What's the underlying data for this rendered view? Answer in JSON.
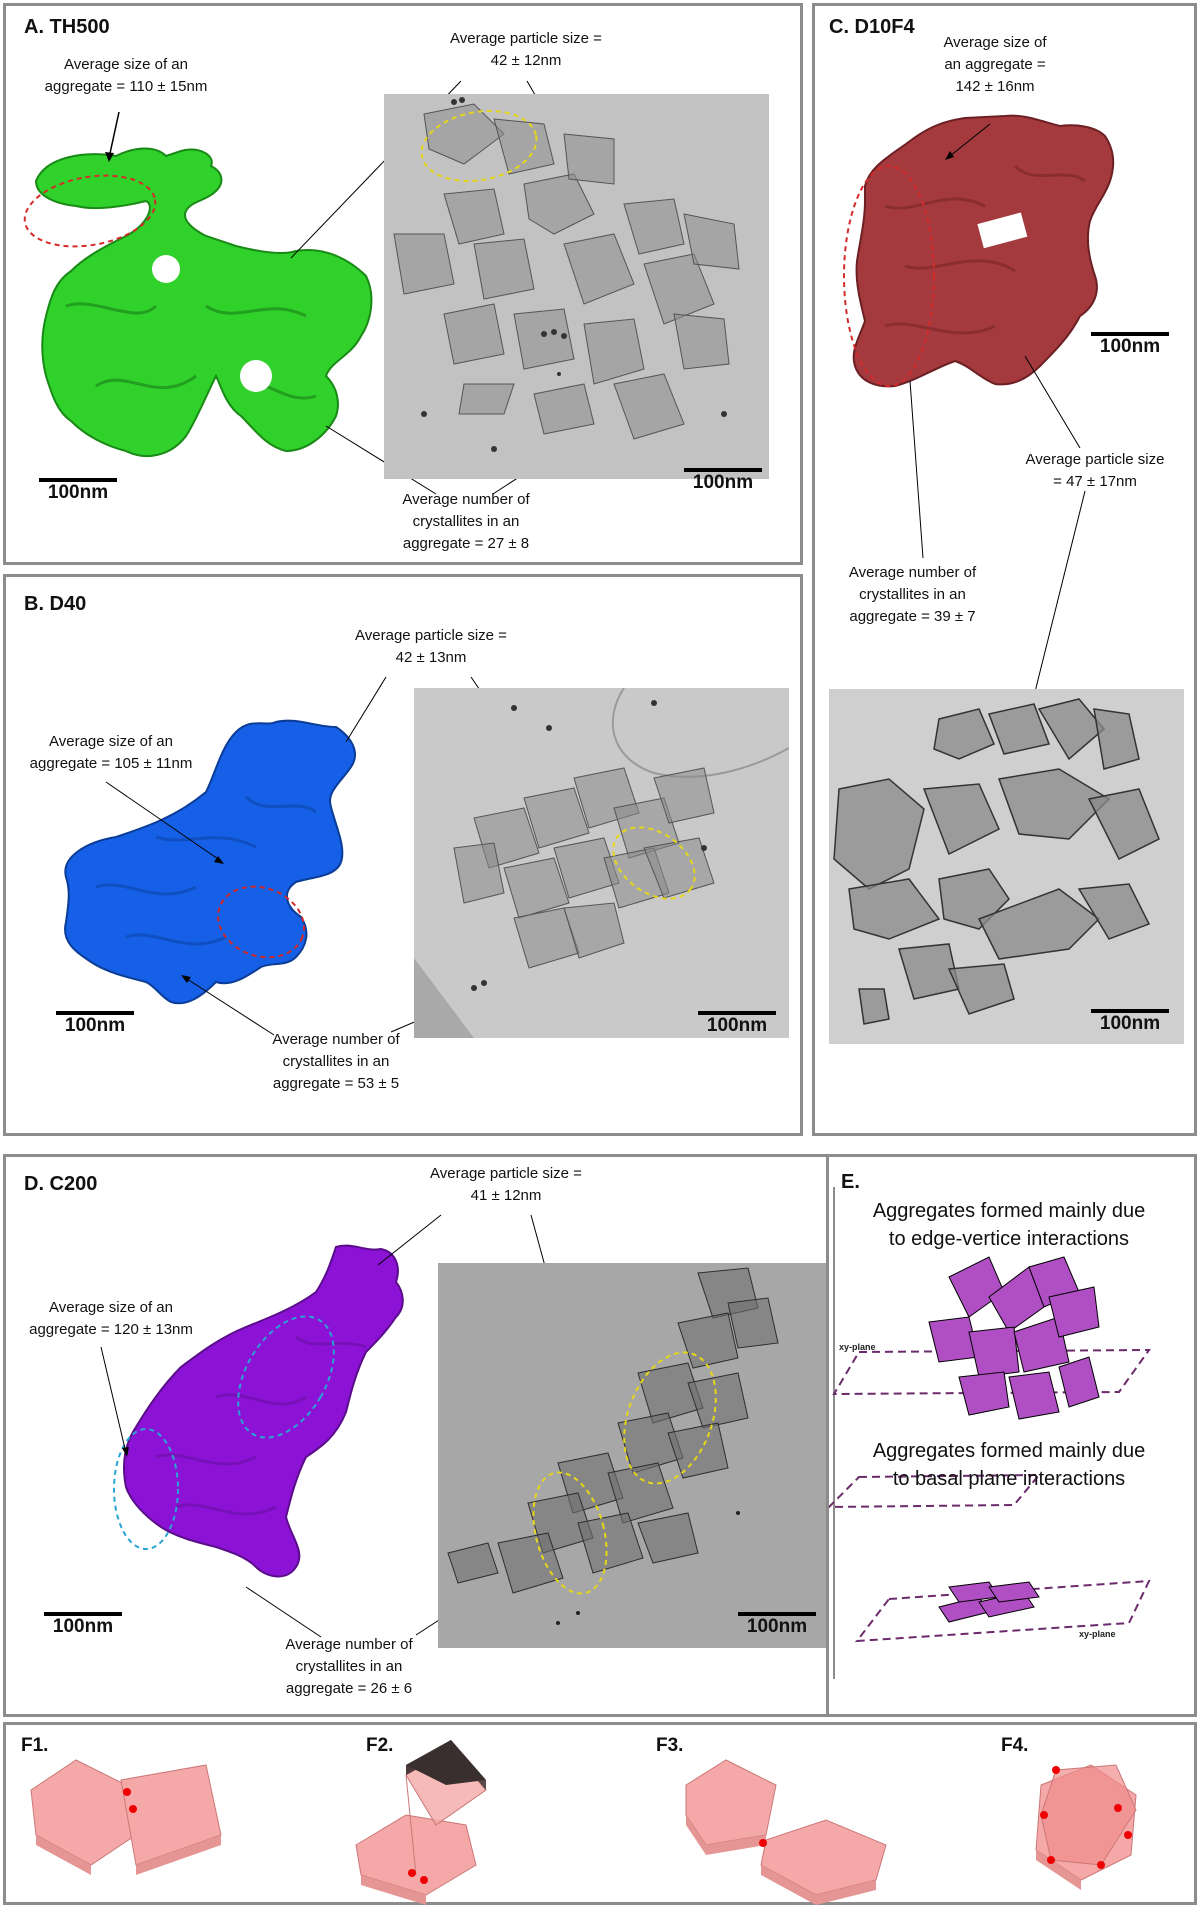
{
  "panelA": {
    "title": "A. TH500",
    "agg_size": [
      "Average size of an",
      "aggregate = 110 ± 15nm"
    ],
    "particle_size": [
      "Average particle size =",
      "42 ± 12nm"
    ],
    "crystallites": [
      "Average number of",
      "crystallites in an",
      "aggregate = 27 ± 8"
    ],
    "scale_left": "100nm",
    "scale_right": "100nm",
    "color": "#2fd12a"
  },
  "panelB": {
    "title": "B. D40",
    "particle_size": [
      "Average particle size =",
      "42 ± 13nm"
    ],
    "agg_size": [
      "Average size of an",
      "aggregate = 105 ± 11nm"
    ],
    "crystallites": [
      "Average number of",
      "crystallites in an",
      "aggregate = 53 ± 5"
    ],
    "scale_left": "100nm",
    "scale_right": "100nm",
    "color": "#1560e6"
  },
  "panelC": {
    "title": "C. D10F4",
    "agg_size": [
      "Average size of",
      "an aggregate =",
      "142 ± 16nm"
    ],
    "particle_size": [
      "Average particle size",
      "= 47 ± 17nm"
    ],
    "crystallites": [
      "Average number of",
      "crystallites in an",
      "aggregate = 39 ± 7"
    ],
    "scale_top": "100nm",
    "scale_bottom": "100nm",
    "color": "#a43a3e"
  },
  "panelD": {
    "title": "D. C200",
    "particle_size": [
      "Average particle size =",
      "41 ± 12nm"
    ],
    "agg_size": [
      "Average size of an",
      "aggregate = 120 ± 13nm"
    ],
    "crystallites": [
      "Average number of",
      "crystallites in an",
      "aggregate = 26 ± 6"
    ],
    "scale_left": "100nm",
    "scale_right": "100nm",
    "color": "#8c13d6"
  },
  "panelE": {
    "title": "E.",
    "heading1": [
      "Aggregates formed mainly due",
      "to edge-vertice interactions"
    ],
    "heading2": [
      "Aggregates formed mainly due",
      "to basal plane interactions"
    ],
    "plane_label": "xy-plane",
    "color": "#b04fc4"
  },
  "panelF": {
    "labels": [
      "F1.",
      "F2.",
      "F3.",
      "F4."
    ],
    "color": "#f4a9a8"
  }
}
